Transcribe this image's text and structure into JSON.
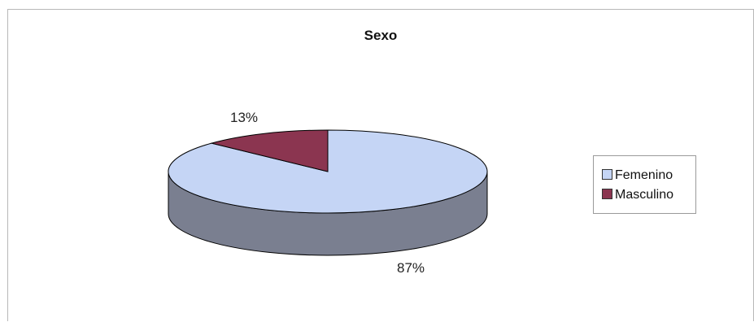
{
  "chart_data": {
    "type": "pie",
    "title": "Sexo",
    "categories": [
      "Femenino",
      "Masculino"
    ],
    "values": [
      87,
      13
    ],
    "data_labels": [
      "87%",
      "13%"
    ],
    "colors": {
      "Femenino": "#c5d5f5",
      "Masculino": "#8b3550"
    },
    "side_color": "#7a7f90",
    "legend_position": "right",
    "style": "3d"
  }
}
